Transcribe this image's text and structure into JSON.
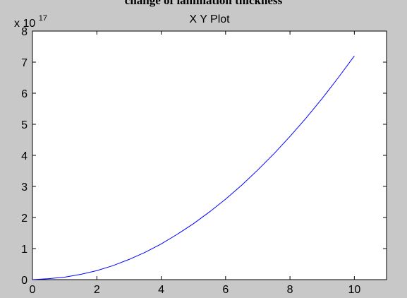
{
  "figure": {
    "caption": "change of lamination thickness"
  },
  "chart_data": {
    "type": "line",
    "title": "X Y Plot",
    "xlabel": "",
    "ylabel": "",
    "y_multiplier_base": "x 10",
    "y_multiplier_exponent": "17",
    "xlim": [
      0,
      11
    ],
    "ylim": [
      0,
      8
    ],
    "x_ticks": [
      0,
      2,
      4,
      6,
      8,
      10
    ],
    "y_ticks": [
      0,
      1,
      2,
      3,
      4,
      5,
      6,
      7,
      8
    ],
    "grid": false,
    "series": [
      {
        "color": "#0000ff",
        "x": [
          0,
          0.5,
          1,
          1.5,
          2,
          2.5,
          3,
          3.5,
          4,
          4.5,
          5,
          5.5,
          6,
          6.5,
          7,
          7.5,
          8,
          8.5,
          9,
          9.5,
          10
        ],
        "y": [
          0,
          0.03,
          0.08,
          0.17,
          0.29,
          0.45,
          0.65,
          0.88,
          1.15,
          1.46,
          1.8,
          2.18,
          2.59,
          3.04,
          3.53,
          4.05,
          4.61,
          5.2,
          5.83,
          6.5,
          7.2
        ]
      }
    ]
  }
}
